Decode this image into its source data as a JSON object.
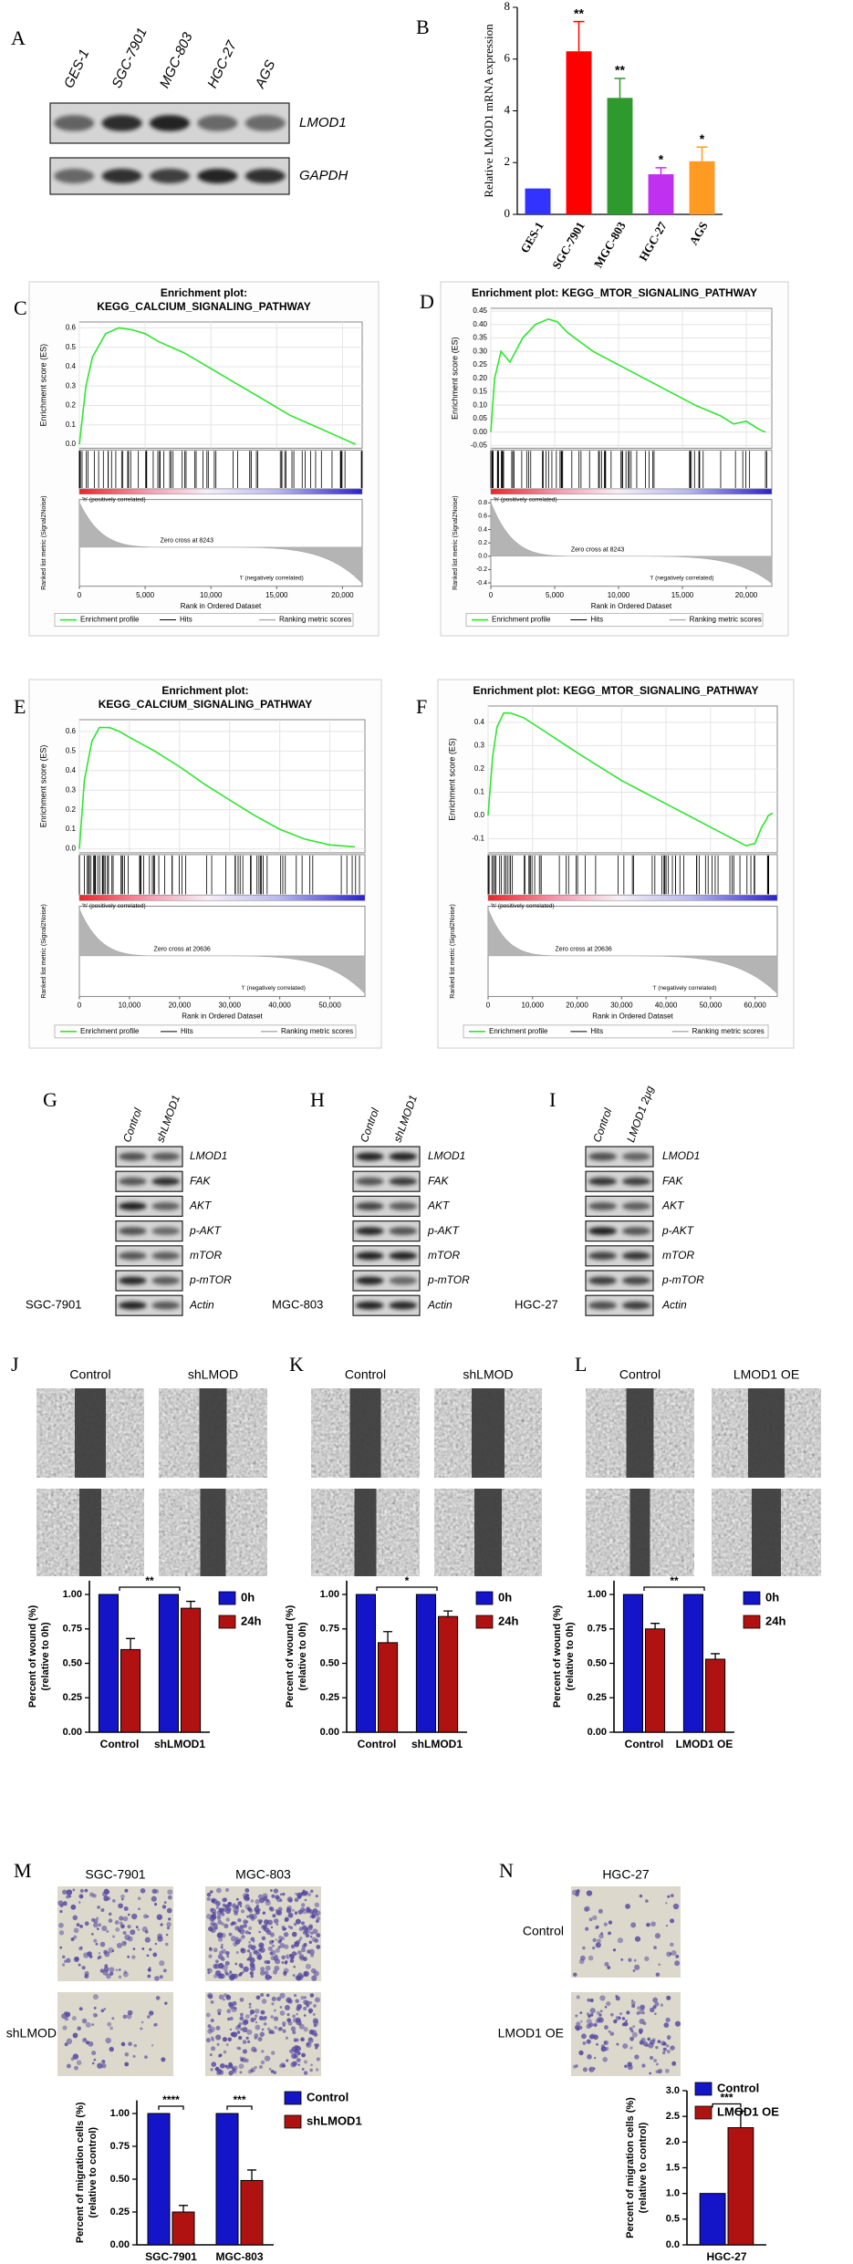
{
  "panel_labels": [
    "A",
    "B",
    "C",
    "D",
    "E",
    "F",
    "G",
    "H",
    "I",
    "J",
    "K",
    "L",
    "M",
    "N"
  ],
  "blot_a": {
    "lanes": [
      "GES-1",
      "SGC-7901",
      "MGC-803",
      "HGC-27",
      "AGS"
    ],
    "proteins": [
      "LMOD1",
      "GAPDH"
    ]
  },
  "blots": [
    {
      "lanes": [
        "Control",
        "shLMOD1"
      ],
      "proteins": [
        "LMOD1",
        "FAK",
        "AKT",
        "p-AKT",
        "mTOR",
        "p-mTOR",
        "Actin"
      ],
      "cell_line": "SGC-7901"
    },
    {
      "lanes": [
        "Control",
        "shLMOD1"
      ],
      "proteins": [
        "LMOD1",
        "FAK",
        "AKT",
        "p-AKT",
        "mTOR",
        "p-mTOR",
        "Actin"
      ],
      "cell_line": "MGC-803"
    },
    {
      "lanes": [
        "Control",
        "LMOD1 2μg"
      ],
      "proteins": [
        "LMOD1",
        "FAK",
        "AKT",
        "p-AKT",
        "mTOR",
        "p-mTOR",
        "Actin"
      ],
      "cell_line": "HGC-27"
    }
  ],
  "wound": [
    {
      "columns": [
        "Control",
        "shLMOD"
      ]
    },
    {
      "columns": [
        "Control",
        "shLMOD"
      ]
    },
    {
      "columns": [
        "Control",
        "LMOD1 OE"
      ]
    }
  ],
  "transwell": [
    {
      "columns": [
        "SGC-7901",
        "MGC-803"
      ],
      "row_label": "shLMOD"
    },
    {
      "columns": [
        "HGC-27"
      ],
      "row_labels": [
        "Control",
        "LMOD1 OE"
      ]
    }
  ],
  "chart_data": [
    {
      "type": "bar",
      "ylabel": "Relative LMOD1 mRNA expression",
      "categories": [
        "GES-1",
        "SGC-7901",
        "MGC-803",
        "HGC-27",
        "AGS"
      ],
      "values": [
        1,
        6.3,
        4.5,
        1.55,
        2.05
      ],
      "errors": [
        null,
        1.15,
        0.75,
        0.25,
        0.55
      ],
      "colors": [
        "#3333ff",
        "#ff0000",
        "#2e9a2e",
        "#c030f0",
        "#ff9a22"
      ],
      "annotations": [
        null,
        "**",
        "**",
        "*",
        "*"
      ],
      "ylim": [
        0,
        8
      ],
      "yticks": [
        0,
        2,
        4,
        6,
        8
      ]
    },
    {
      "type": "gsea",
      "title_lines": [
        "Enrichment plot:",
        "KEGG_CALCIUM_SIGNALING_PATHWAY"
      ],
      "ylabel": "Enrichment score (ES)",
      "metric_label": "Ranked list metric (Signal2Noise)",
      "xlabel": "Rank in Ordered Dataset",
      "x": [
        0,
        500,
        1000,
        2000,
        3000,
        4000,
        5000,
        6000,
        8000,
        10000,
        12000,
        14000,
        16000,
        18000,
        20000,
        21000
      ],
      "values": [
        0,
        0.3,
        0.45,
        0.57,
        0.6,
        0.59,
        0.57,
        0.53,
        0.47,
        0.39,
        0.31,
        0.23,
        0.15,
        0.09,
        0.03,
        0.0
      ],
      "color": "#2ee62e",
      "xlim": [
        0,
        21500
      ],
      "xticks": [
        0,
        {
          "value": 5000,
          "label": "5,000"
        },
        {
          "value": 10000,
          "label": "10,000"
        },
        {
          "value": 15000,
          "label": "15,000"
        },
        {
          "value": 20000,
          "label": "20,000"
        }
      ],
      "ylim": [
        -0.02,
        0.63
      ],
      "yticks": [
        {
          "value": 0,
          "label": "0.0"
        },
        0.1,
        0.2,
        0.3,
        0.4,
        0.5,
        0.6
      ],
      "pos_label": "'h' (positively correlated)",
      "neg_label": "'l' (negatively correlated)",
      "zero_cross": "Zero cross at 8243",
      "legend": [
        "Enrichment profile",
        "Hits",
        "Ranking metric scores"
      ]
    },
    {
      "type": "gsea",
      "title_lines": [
        "Enrichment plot: KEGG_MTOR_SIGNALING_PATHWAY"
      ],
      "ylabel": "Enrichment score (ES)",
      "metric_label": "Ranked list metric (Signal2Noise)",
      "xlabel": "Rank in Ordered Dataset",
      "x": [
        0,
        300,
        800,
        1500,
        2500,
        3500,
        4500,
        5200,
        6000,
        8000,
        10000,
        12000,
        14000,
        16000,
        18000,
        19000,
        20000,
        21000,
        21500
      ],
      "values": [
        0,
        0.2,
        0.3,
        0.26,
        0.35,
        0.4,
        0.42,
        0.41,
        0.37,
        0.3,
        0.25,
        0.2,
        0.15,
        0.1,
        0.06,
        0.03,
        0.04,
        0.01,
        0.0
      ],
      "color": "#2ee62e",
      "xlim": [
        0,
        22000
      ],
      "xticks": [
        0,
        {
          "value": 5000,
          "label": "5,000"
        },
        {
          "value": 10000,
          "label": "10,000"
        },
        {
          "value": 15000,
          "label": "15,000"
        },
        {
          "value": 20000,
          "label": "20,000"
        }
      ],
      "ylim": [
        -0.06,
        0.46
      ],
      "yticks": [
        -0.05,
        {
          "value": 0,
          "label": "0.00"
        },
        0.05,
        {
          "value": 0.1,
          "label": "0.10"
        },
        0.15,
        {
          "value": 0.2,
          "label": "0.20"
        },
        0.25,
        {
          "value": 0.3,
          "label": "0.30"
        },
        0.35,
        {
          "value": 0.4,
          "label": "0.40"
        },
        0.45
      ],
      "metric_lim": [
        -0.45,
        0.85
      ],
      "metric_ticks": [
        0.8,
        0.6,
        0.4,
        0.2,
        {
          "value": 0,
          "label": "0.0"
        },
        -0.2,
        -0.4
      ],
      "pos_label": "'h' (positively correlated)",
      "neg_label": "'l' (negatively correlated)",
      "zero_cross": "Zero cross at 8243",
      "legend": [
        "Enrichment profile",
        "Hits",
        "Ranking metric scores"
      ]
    },
    {
      "type": "gsea",
      "title_lines": [
        "Enrichment plot:",
        "KEGG_CALCIUM_SIGNALING_PATHWAY"
      ],
      "ylabel": "Enrichment score (ES)",
      "metric_label": "Ranked list metric (Signal2Noise)",
      "xlabel": "Rank in Ordered Dataset",
      "x": [
        0,
        1000,
        2500,
        4000,
        6000,
        8000,
        10000,
        15000,
        20000,
        25000,
        30000,
        35000,
        40000,
        45000,
        50000,
        55000
      ],
      "values": [
        0,
        0.35,
        0.55,
        0.62,
        0.62,
        0.6,
        0.57,
        0.5,
        0.42,
        0.33,
        0.25,
        0.17,
        0.1,
        0.05,
        0.02,
        0.01
      ],
      "color": "#2ee62e",
      "xlim": [
        0,
        57000
      ],
      "xticks": [
        0,
        {
          "value": 10000,
          "label": "10,000"
        },
        {
          "value": 20000,
          "label": "20,000"
        },
        {
          "value": 30000,
          "label": "30,000"
        },
        {
          "value": 40000,
          "label": "40,000"
        },
        {
          "value": 50000,
          "label": "50,000"
        }
      ],
      "ylim": [
        -0.02,
        0.66
      ],
      "yticks": [
        {
          "value": 0,
          "label": "0.0"
        },
        0.1,
        0.2,
        0.3,
        0.4,
        0.5,
        0.6
      ],
      "pos_label": "'h' (positively correlated)",
      "neg_label": "'l' (negatively correlated)",
      "zero_cross": "Zero cross at 20636",
      "legend": [
        "Enrichment profile",
        "Hits",
        "Ranking metric scores"
      ]
    },
    {
      "type": "gsea",
      "title_lines": [
        "Enrichment plot: KEGG_MTOR_SIGNALING_PATHWAY"
      ],
      "ylabel": "Enrichment score (ES)",
      "metric_label": "Ranked list metric (Signal2Noise)",
      "xlabel": "Rank in Ordered Dataset",
      "x": [
        0,
        1000,
        2000,
        3500,
        5000,
        8000,
        12000,
        16000,
        20000,
        25000,
        30000,
        35000,
        40000,
        45000,
        50000,
        55000,
        58000,
        60000,
        61500,
        62500,
        63000,
        64000
      ],
      "values": [
        0,
        0.25,
        0.38,
        0.44,
        0.44,
        0.42,
        0.37,
        0.32,
        0.27,
        0.21,
        0.15,
        0.1,
        0.05,
        0.0,
        -0.05,
        -0.1,
        -0.13,
        -0.12,
        -0.05,
        -0.02,
        0.0,
        0.01
      ],
      "color": "#2ee62e",
      "xlim": [
        0,
        65000
      ],
      "xticks": [
        0,
        {
          "value": 10000,
          "label": "10,000"
        },
        {
          "value": 20000,
          "label": "20,000"
        },
        {
          "value": 30000,
          "label": "30,000"
        },
        {
          "value": 40000,
          "label": "40,000"
        },
        {
          "value": 50000,
          "label": "50,000"
        },
        {
          "value": 60000,
          "label": "60,000"
        }
      ],
      "ylim": [
        -0.16,
        0.47
      ],
      "yticks": [
        -0.1,
        {
          "value": 0,
          "label": "0.0"
        },
        0.1,
        0.2,
        0.3,
        0.4
      ],
      "pos_label": "'h' (positively correlated)",
      "neg_label": "'l' (negatively correlated)",
      "zero_cross": "Zero cross at 20636",
      "legend": [
        "Enrichment profile",
        "Hits",
        "Ranking metric scores"
      ]
    },
    {
      "type": "grouped_bar",
      "ylabel_lines": [
        "Percent of wound (%)",
        "(relative to 0h)"
      ],
      "categories": [
        "Control",
        "shLMOD1"
      ],
      "series": [
        {
          "name": "0h",
          "color": "#1414c8",
          "values": [
            1,
            1
          ],
          "errors": [
            null,
            null
          ]
        },
        {
          "name": "24h",
          "color": "#b01212",
          "values": [
            0.6,
            0.9
          ],
          "errors": [
            0.08,
            0.05
          ]
        }
      ],
      "significance": "**",
      "ylim": [
        0,
        1.1
      ],
      "yticks": [
        {
          "value": 0,
          "label": "0.00"
        },
        0.25,
        {
          "value": 0.5,
          "label": "0.50"
        },
        0.75,
        {
          "value": 1,
          "label": "1.00"
        }
      ]
    },
    {
      "type": "grouped_bar",
      "ylabel_lines": [
        "Percent of wound (%)",
        "(relative to 0h)"
      ],
      "categories": [
        "Control",
        "shLMOD1"
      ],
      "series": [
        {
          "name": "0h",
          "color": "#1414c8",
          "values": [
            1,
            1
          ],
          "errors": [
            null,
            null
          ]
        },
        {
          "name": "24h",
          "color": "#b01212",
          "values": [
            0.65,
            0.84
          ],
          "errors": [
            0.08,
            0.04
          ]
        }
      ],
      "significance": "*",
      "ylim": [
        0,
        1.1
      ],
      "yticks": [
        {
          "value": 0,
          "label": "0.00"
        },
        0.25,
        {
          "value": 0.5,
          "label": "0.50"
        },
        0.75,
        {
          "value": 1,
          "label": "1.00"
        }
      ]
    },
    {
      "type": "grouped_bar",
      "ylabel_lines": [
        "Percent of wound (%)",
        "(relative to 0h)"
      ],
      "categories": [
        "Control",
        "LMOD1 OE"
      ],
      "series": [
        {
          "name": "0h",
          "color": "#1414c8",
          "values": [
            1,
            1
          ],
          "errors": [
            null,
            null
          ]
        },
        {
          "name": "24h",
          "color": "#b01212",
          "values": [
            0.75,
            0.53
          ],
          "errors": [
            0.04,
            0.04
          ]
        }
      ],
      "significance": "**",
      "ylim": [
        0,
        1.1
      ],
      "yticks": [
        {
          "value": 0,
          "label": "0.00"
        },
        0.25,
        {
          "value": 0.5,
          "label": "0.50"
        },
        0.75,
        {
          "value": 1,
          "label": "1.00"
        }
      ]
    },
    {
      "type": "grouped_bar",
      "ylabel_lines": [
        "Percent of migration cells (%)",
        "(relative to control)"
      ],
      "categories": [
        "SGC-7901",
        "MGC-803"
      ],
      "series": [
        {
          "name": "Control",
          "color": "#1414c8",
          "values": [
            1,
            1
          ],
          "errors": [
            null,
            null
          ]
        },
        {
          "name": "shLMOD1",
          "color": "#b01212",
          "values": [
            0.25,
            0.49
          ],
          "errors": [
            0.05,
            0.08
          ]
        }
      ],
      "significance": [
        "****",
        "***"
      ],
      "ylim": [
        0,
        1.1
      ],
      "yticks": [
        {
          "value": 0,
          "label": "0.00"
        },
        0.25,
        {
          "value": 0.5,
          "label": "0.50"
        },
        0.75,
        {
          "value": 1,
          "label": "1.00"
        }
      ]
    },
    {
      "type": "grouped_bar",
      "ylabel_lines": [
        "Percent of migration cells (%)",
        "(relative to control)"
      ],
      "categories": [
        "HGC-27"
      ],
      "series": [
        {
          "name": "Control",
          "color": "#1414c8",
          "values": [
            1
          ],
          "errors": [
            null
          ]
        },
        {
          "name": "LMOD1 OE",
          "color": "#b01212",
          "values": [
            2.28
          ],
          "errors": [
            0.32
          ]
        }
      ],
      "significance": [
        "***"
      ],
      "ylim": [
        0,
        3
      ],
      "yticks": [
        {
          "value": 0,
          "label": "0.0"
        },
        0.5,
        {
          "value": 1,
          "label": "1.0"
        },
        1.5,
        {
          "value": 2,
          "label": "2.0"
        },
        2.5,
        {
          "value": 3,
          "label": "3.0"
        }
      ]
    }
  ]
}
